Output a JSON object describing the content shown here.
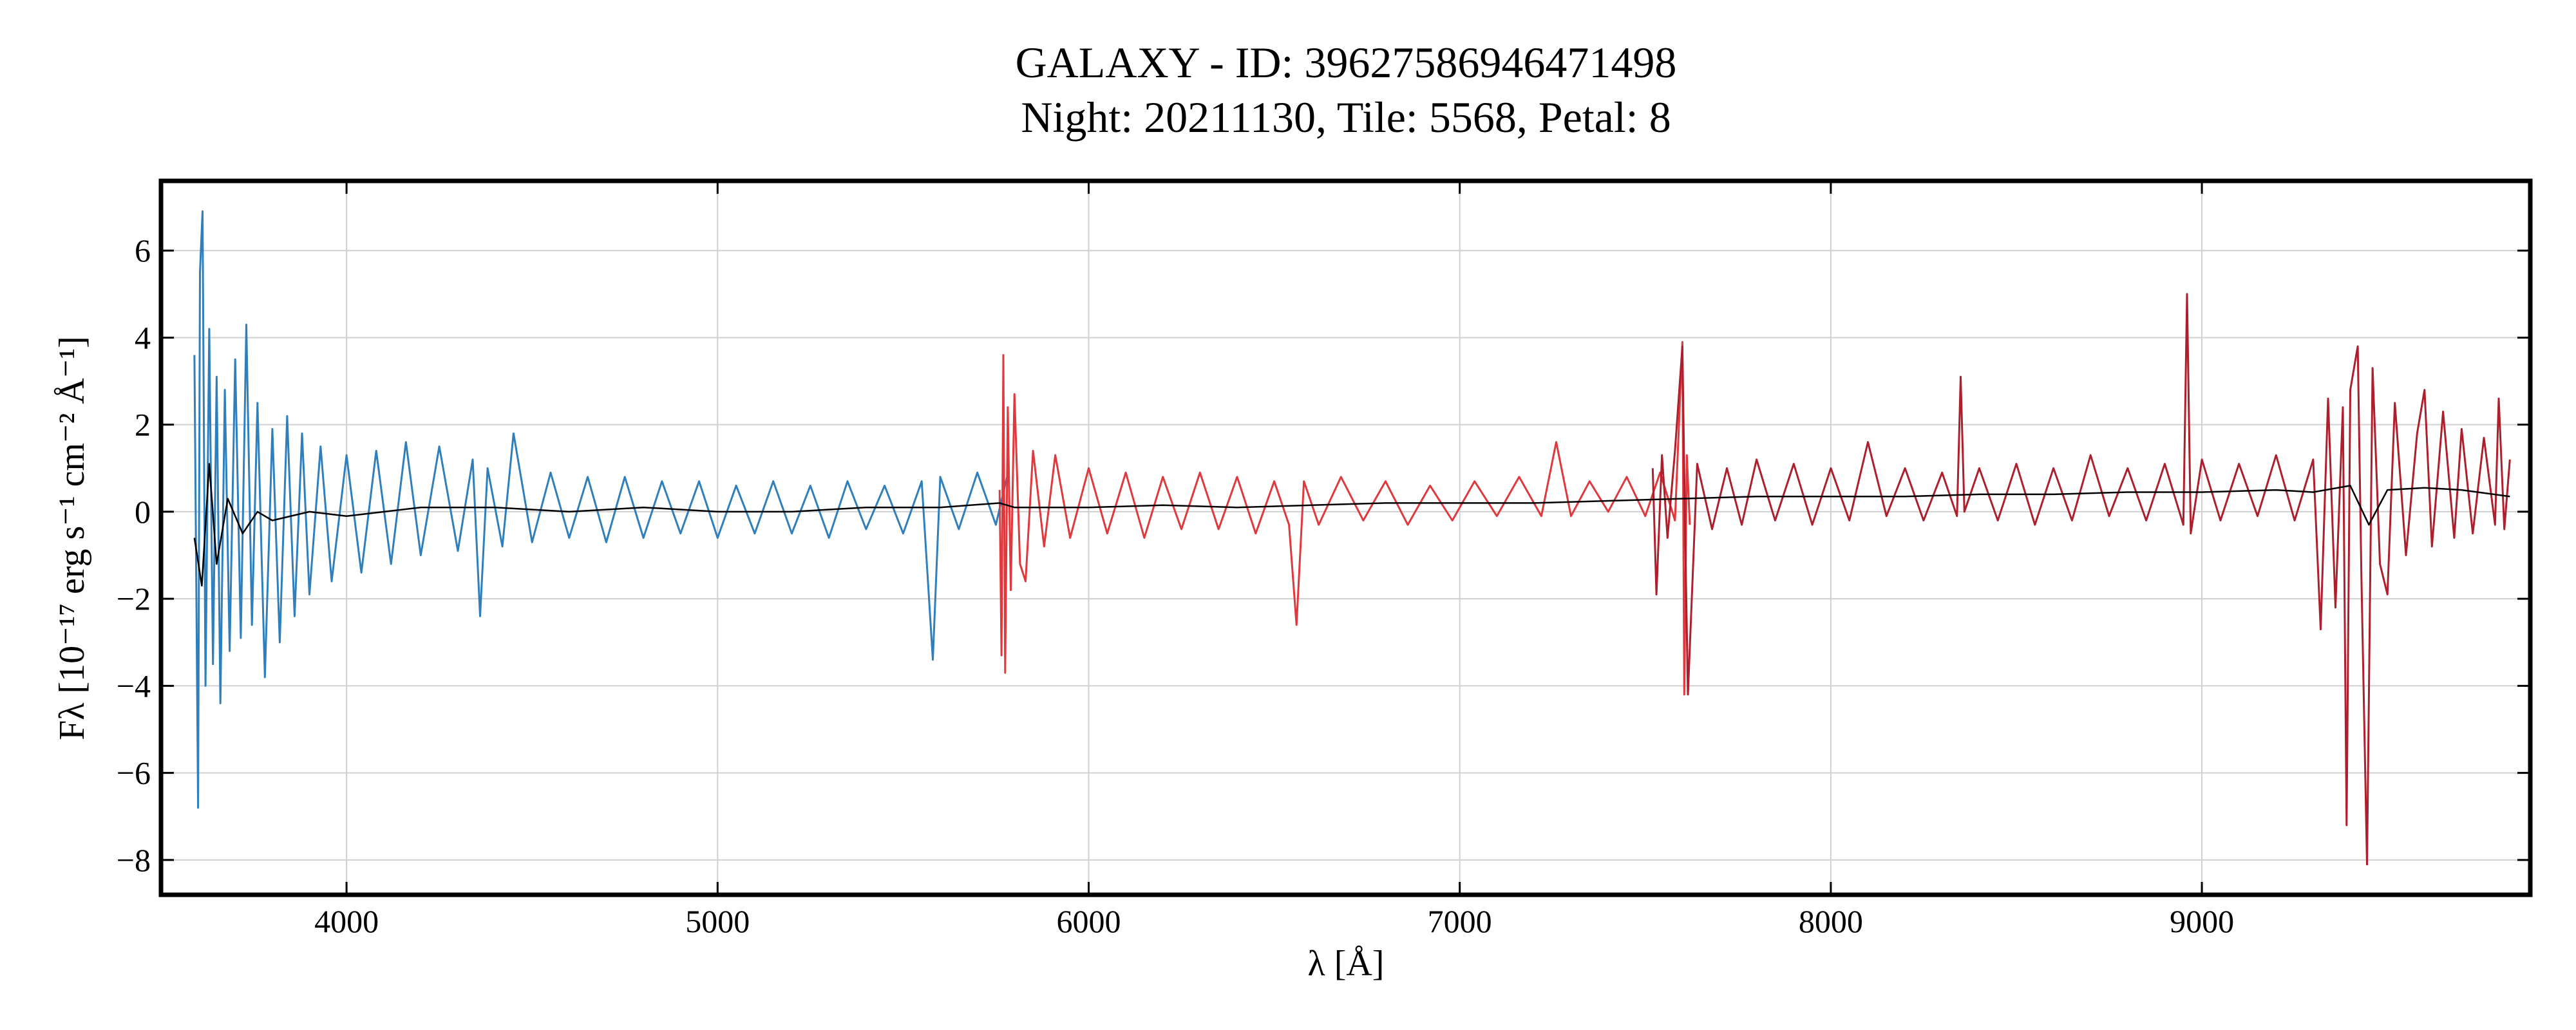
{
  "chart_data": {
    "type": "line",
    "title": "GALAXY - ID: 39627586946471498",
    "subtitle": "Night: 20211130, Tile: 5568, Petal: 8",
    "xlabel": "λ [Å]",
    "ylabel": "Fλ [10⁻¹⁷ erg s⁻¹ cm⁻² Å⁻¹]",
    "xlim": [
      3500,
      9885
    ],
    "ylim": [
      -8.8,
      7.6
    ],
    "xticks": [
      4000,
      5000,
      6000,
      7000,
      8000,
      9000
    ],
    "yticks": [
      {
        "value": -8,
        "label": "−8"
      },
      {
        "value": -6,
        "label": "−6"
      },
      {
        "value": -4,
        "label": "−4"
      },
      {
        "value": -2,
        "label": "−2"
      },
      0,
      2,
      4,
      6
    ],
    "grid": true,
    "series": [
      {
        "color": "#2f7fbd",
        "x": [
          3590,
          3600,
          3605,
          3612,
          3620,
          3630,
          3640,
          3650,
          3660,
          3672,
          3685,
          3700,
          3715,
          3730,
          3745,
          3760,
          3780,
          3800,
          3820,
          3840,
          3860,
          3880,
          3900,
          3930,
          3960,
          4000,
          4040,
          4080,
          4120,
          4160,
          4200,
          4250,
          4300,
          4340,
          4360,
          4380,
          4420,
          4450,
          4500,
          4550,
          4600,
          4650,
          4700,
          4750,
          4800,
          4850,
          4900,
          4950,
          5000,
          5050,
          5100,
          5150,
          5200,
          5250,
          5300,
          5350,
          5400,
          5450,
          5500,
          5550,
          5580,
          5600,
          5650,
          5700,
          5750,
          5780
        ],
        "values": [
          3.6,
          -6.8,
          5.5,
          6.9,
          -4,
          4.2,
          -3.5,
          3.1,
          -4.4,
          2.8,
          -3.2,
          3.5,
          -2.9,
          4.3,
          -2.6,
          2.5,
          -3.8,
          1.9,
          -3.0,
          2.2,
          -2.4,
          1.8,
          -1.9,
          1.5,
          -1.6,
          1.3,
          -1.4,
          1.4,
          -1.2,
          1.6,
          -1.0,
          1.5,
          -0.9,
          1.2,
          -2.4,
          1.0,
          -0.8,
          1.8,
          -0.7,
          0.9,
          -0.6,
          0.8,
          -0.7,
          0.8,
          -0.6,
          0.7,
          -0.5,
          0.7,
          -0.6,
          0.6,
          -0.5,
          0.7,
          -0.5,
          0.6,
          -0.6,
          0.7,
          -0.4,
          0.6,
          -0.5,
          0.7,
          -3.4,
          0.8,
          -0.4,
          0.9,
          -0.3,
          0.8
        ]
      },
      {
        "color": "#e0383c",
        "x": [
          5760,
          5765,
          5770,
          5775,
          5782,
          5790,
          5800,
          5815,
          5830,
          5850,
          5880,
          5910,
          5950,
          6000,
          6050,
          6100,
          6150,
          6200,
          6250,
          6300,
          6350,
          6400,
          6450,
          6500,
          6540,
          6560,
          6580,
          6620,
          6680,
          6740,
          6800,
          6860,
          6920,
          6980,
          7040,
          7100,
          7160,
          7220,
          7260,
          7300,
          7350,
          7400,
          7450,
          7500,
          7540,
          7580,
          7600,
          7605,
          7612,
          7620
        ],
        "values": [
          0.5,
          -3.3,
          3.6,
          -3.7,
          2.4,
          -1.8,
          2.7,
          -1.2,
          -1.6,
          1.4,
          -0.8,
          1.3,
          -0.6,
          1.0,
          -0.5,
          0.9,
          -0.6,
          0.8,
          -0.4,
          0.9,
          -0.4,
          0.8,
          -0.5,
          0.7,
          -0.3,
          -2.6,
          0.7,
          -0.3,
          0.8,
          -0.2,
          0.7,
          -0.3,
          0.6,
          -0.2,
          0.7,
          -0.1,
          0.8,
          -0.1,
          1.6,
          -0.1,
          0.7,
          0.0,
          0.8,
          -0.1,
          0.9,
          -0.2,
          3.9,
          -4.2,
          1.3,
          -0.3
        ]
      },
      {
        "color": "#ad1f2c",
        "x": [
          7520,
          7530,
          7545,
          7560,
          7580,
          7600,
          7608,
          7615,
          7640,
          7680,
          7720,
          7760,
          7800,
          7850,
          7900,
          7950,
          8000,
          8050,
          8100,
          8150,
          8200,
          8250,
          8300,
          8340,
          8350,
          8360,
          8400,
          8450,
          8500,
          8550,
          8600,
          8650,
          8700,
          8750,
          8800,
          8850,
          8900,
          8950,
          8960,
          8970,
          9000,
          9050,
          9100,
          9150,
          9200,
          9250,
          9300,
          9320,
          9340,
          9360,
          9380,
          9390,
          9400,
          9420,
          9430,
          9445,
          9460,
          9480,
          9500,
          9520,
          9550,
          9580,
          9600,
          9620,
          9650,
          9680,
          9700,
          9730,
          9760,
          9790,
          9800,
          9815,
          9830
        ],
        "values": [
          1.0,
          -1.9,
          1.3,
          -0.6,
          1.4,
          3.8,
          -0.8,
          -4.2,
          1.1,
          -0.4,
          1.0,
          -0.3,
          1.2,
          -0.2,
          1.1,
          -0.3,
          1.0,
          -0.2,
          1.6,
          -0.1,
          1.0,
          -0.2,
          0.9,
          -0.1,
          3.1,
          0.0,
          1.0,
          -0.2,
          1.1,
          -0.3,
          1.0,
          -0.2,
          1.3,
          -0.1,
          1.0,
          -0.2,
          1.1,
          -0.3,
          5.0,
          -0.5,
          1.2,
          -0.2,
          1.1,
          -0.1,
          1.3,
          -0.2,
          1.2,
          -2.7,
          2.6,
          -2.2,
          2.4,
          -7.2,
          2.8,
          3.8,
          -1.5,
          -8.1,
          3.3,
          -1.2,
          -1.9,
          2.5,
          -1.0,
          1.8,
          2.8,
          -0.8,
          2.3,
          -0.6,
          1.9,
          -0.5,
          1.7,
          -0.3,
          2.6,
          -0.4,
          1.2
        ]
      },
      {
        "color": "#000000",
        "x": [
          3590,
          3610,
          3630,
          3650,
          3680,
          3720,
          3760,
          3800,
          3900,
          4000,
          4200,
          4400,
          4600,
          4800,
          5000,
          5200,
          5400,
          5600,
          5760,
          5800,
          6000,
          6200,
          6400,
          6600,
          6800,
          7000,
          7200,
          7400,
          7600,
          7800,
          8000,
          8200,
          8400,
          8600,
          8800,
          9000,
          9200,
          9300,
          9400,
          9450,
          9500,
          9600,
          9700,
          9830
        ],
        "values": [
          -0.6,
          -1.7,
          1.1,
          -1.2,
          0.3,
          -0.5,
          0.0,
          -0.2,
          0.0,
          -0.1,
          0.1,
          0.1,
          0.0,
          0.1,
          0.0,
          0.0,
          0.1,
          0.1,
          0.2,
          0.1,
          0.1,
          0.15,
          0.1,
          0.15,
          0.2,
          0.2,
          0.2,
          0.25,
          0.3,
          0.35,
          0.35,
          0.35,
          0.4,
          0.4,
          0.45,
          0.45,
          0.5,
          0.45,
          0.6,
          -0.3,
          0.5,
          0.55,
          0.5,
          0.35
        ]
      }
    ]
  }
}
